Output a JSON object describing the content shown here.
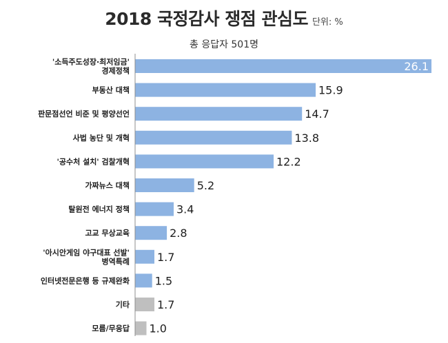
{
  "title": "2018 국정감사 쟁점 관심도",
  "unit": "단위: %",
  "subtitle": "총 응답자 501명",
  "chart_data": {
    "type": "bar",
    "orientation": "horizontal",
    "title": "2018 국정감사 쟁점 관심도",
    "subtitle": "총 응답자 501명",
    "unit": "단위: %",
    "categories": [
      [
        "'소득주도성장·최저임금'",
        "경제정책"
      ],
      [
        "부동산 대책"
      ],
      [
        "판문점선언 비준 및 평양선언"
      ],
      [
        "사법 농단 및 개혁"
      ],
      [
        "'공수처 설치' 검찰개혁"
      ],
      [
        "가짜뉴스 대책"
      ],
      [
        "탈원전 에너지 정책"
      ],
      [
        "고교 무상교육"
      ],
      [
        "'아시안게임 야구대표 선발'",
        "병역특례"
      ],
      [
        "인터넷전문은행 등 규제완화"
      ],
      [
        "기타"
      ],
      [
        "모름/무응답"
      ]
    ],
    "values": [
      26.1,
      15.9,
      14.7,
      13.8,
      12.2,
      5.2,
      3.4,
      2.8,
      1.7,
      1.5,
      1.7,
      1.0
    ],
    "value_labels": [
      "26.1",
      "15.9",
      "14.7",
      "13.8",
      "12.2",
      "5.2",
      "3.4",
      "2.8",
      "1.7",
      "1.5",
      "1.7",
      "1.0"
    ],
    "colors": [
      "#8db3e2",
      "#8db3e2",
      "#8db3e2",
      "#8db3e2",
      "#8db3e2",
      "#8db3e2",
      "#8db3e2",
      "#8db3e2",
      "#8db3e2",
      "#8db3e2",
      "#bfbfbf",
      "#bfbfbf"
    ],
    "axis_color": "#8c8c8c",
    "xlim": [
      0,
      26.1
    ],
    "grid": false,
    "legend": "none"
  }
}
